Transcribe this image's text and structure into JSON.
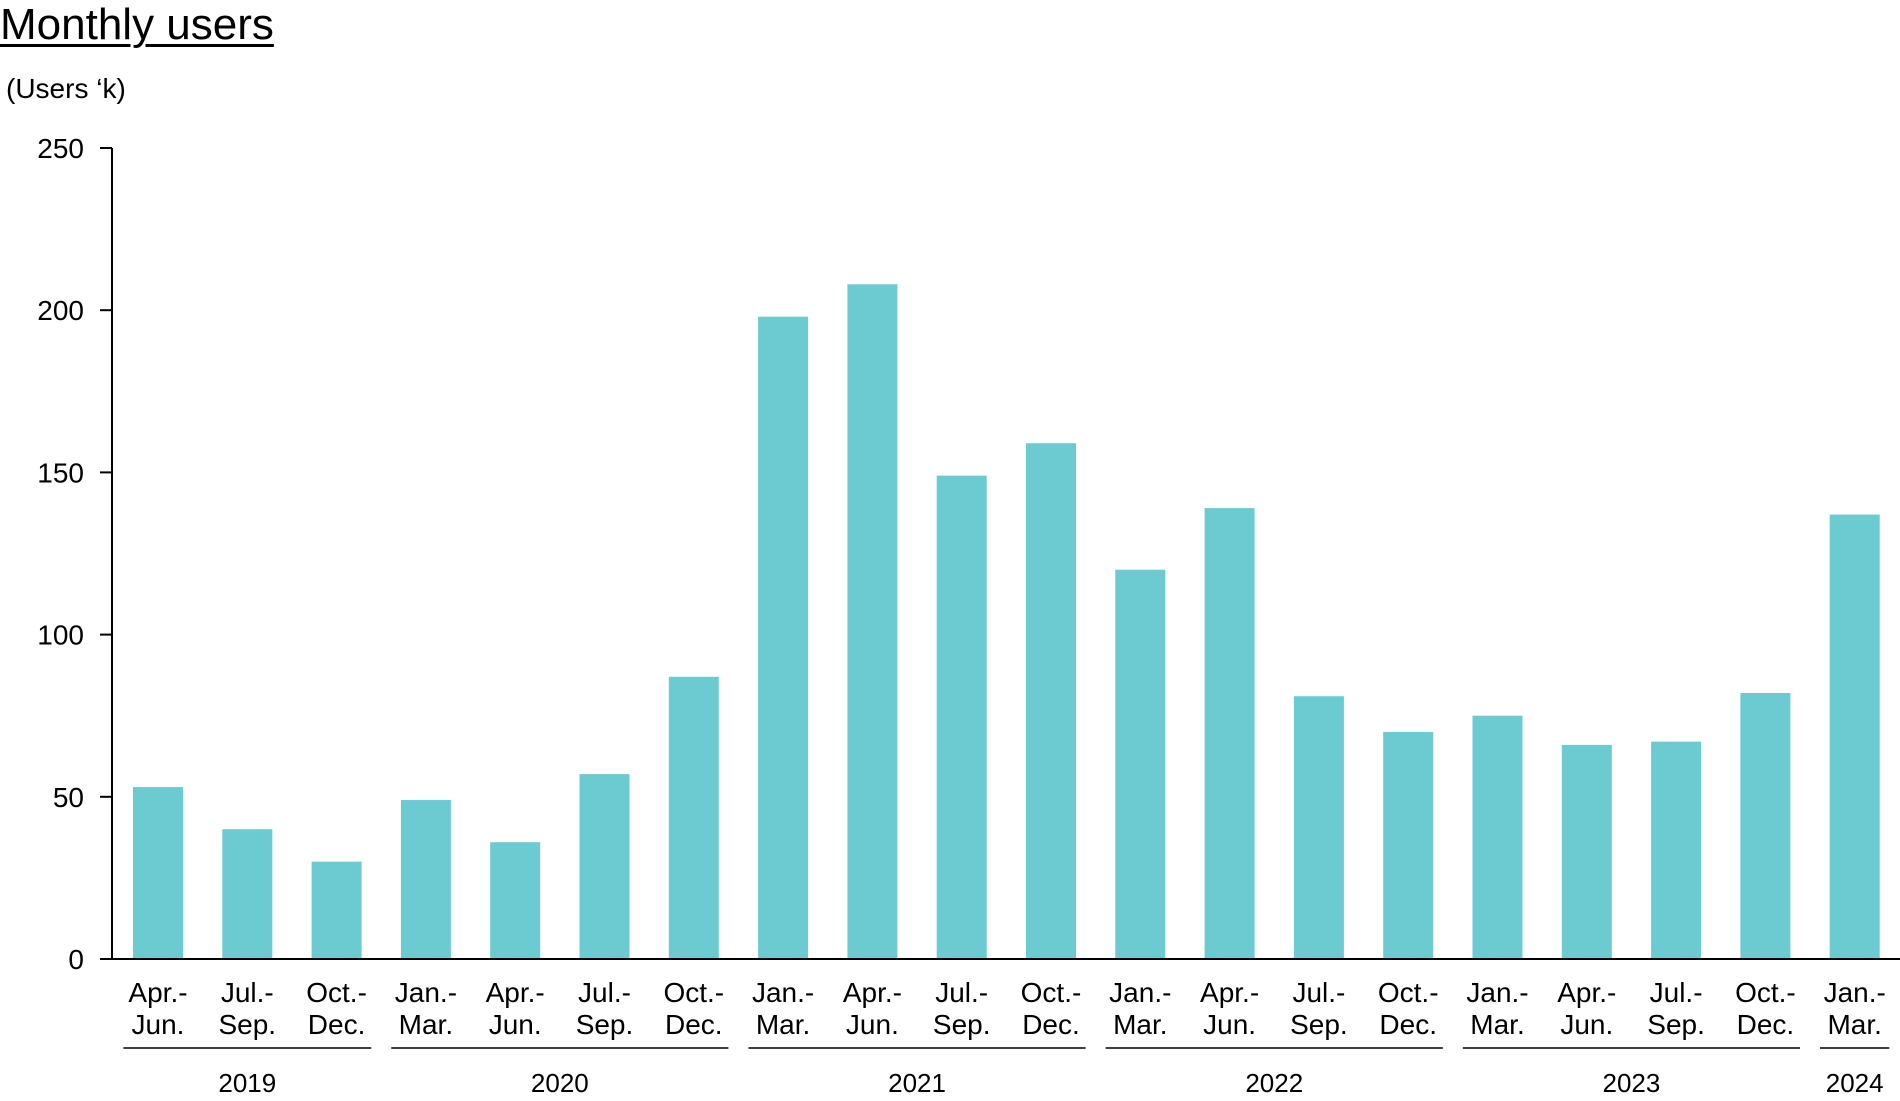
{
  "chart_data": {
    "type": "bar",
    "title": "Monthly users",
    "ylabel": "(Users ‘k)",
    "xlabel": "",
    "ylim": [
      0,
      250
    ],
    "yticks": [
      0,
      50,
      100,
      150,
      200,
      250
    ],
    "grid": false,
    "bar_color": "#6bcbd1",
    "categories": [
      [
        "Apr.-",
        "Jun."
      ],
      [
        "Jul.-",
        "Sep."
      ],
      [
        "Oct.-",
        "Dec."
      ],
      [
        "Jan.-",
        "Mar."
      ],
      [
        "Apr.-",
        "Jun."
      ],
      [
        "Jul.-",
        "Sep."
      ],
      [
        "Oct.-",
        "Dec."
      ],
      [
        "Jan.-",
        "Mar."
      ],
      [
        "Apr.-",
        "Jun."
      ],
      [
        "Jul.-",
        "Sep."
      ],
      [
        "Oct.-",
        "Dec."
      ],
      [
        "Jan.-",
        "Mar."
      ],
      [
        "Apr.-",
        "Jun."
      ],
      [
        "Jul.-",
        "Sep."
      ],
      [
        "Oct.-",
        "Dec."
      ],
      [
        "Jan.-",
        "Mar."
      ],
      [
        "Apr.-",
        "Jun."
      ],
      [
        "Jul.-",
        "Sep."
      ],
      [
        "Oct.-",
        "Dec."
      ],
      [
        "Jan.-",
        "Mar."
      ]
    ],
    "values": [
      53,
      40,
      30,
      49,
      36,
      57,
      87,
      198,
      208,
      149,
      159,
      120,
      139,
      81,
      70,
      75,
      66,
      67,
      82,
      137
    ],
    "year_groups": [
      {
        "label": "2019",
        "count": 3
      },
      {
        "label": "2020",
        "count": 4
      },
      {
        "label": "2021",
        "count": 4
      },
      {
        "label": "2022",
        "count": 4
      },
      {
        "label": "2023",
        "count": 4
      },
      {
        "label": "2024",
        "count": 1
      }
    ]
  }
}
